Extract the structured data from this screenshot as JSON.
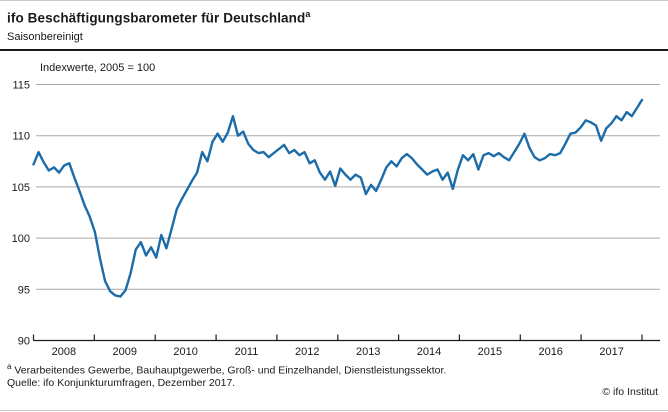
{
  "header": {
    "title": "ifo Beschäftigungsbarometer für Deutschland",
    "title_superscript": "a",
    "subtitle": "Saisonbereinigt"
  },
  "chart_data": {
    "type": "line",
    "title": "ifo Beschäftigungsbarometer für Deutschland",
    "unit_label": "Indexwerte, 2005 = 100",
    "grid": "horizontal",
    "legend": "none",
    "ylim": [
      90,
      115
    ],
    "y_ticks": [
      115,
      110,
      105,
      100,
      95,
      90
    ],
    "x_tick_years": [
      "2008",
      "2009",
      "2010",
      "2011",
      "2012",
      "2013",
      "2014",
      "2015",
      "2016",
      "2017"
    ],
    "line_color": "#1b6ca9",
    "series": [
      {
        "name": "ifo Beschäftigungsbarometer (saisonbereinigt)",
        "x_start": "2008-01",
        "x_end": "2017-12",
        "frequency": "monthly",
        "values": [
          107.2,
          108.4,
          107.4,
          106.6,
          106.9,
          106.4,
          107.1,
          107.3,
          105.9,
          104.6,
          103.2,
          102.1,
          100.6,
          98.0,
          95.8,
          94.8,
          94.4,
          94.3,
          94.9,
          96.6,
          98.9,
          99.6,
          98.3,
          99.1,
          98.1,
          100.3,
          99.0,
          100.9,
          102.8,
          103.8,
          104.7,
          105.6,
          106.4,
          108.4,
          107.5,
          109.4,
          110.2,
          109.4,
          110.3,
          111.9,
          110.0,
          110.4,
          109.2,
          108.6,
          108.3,
          108.4,
          107.9,
          108.3,
          108.7,
          109.1,
          108.3,
          108.6,
          108.1,
          108.4,
          107.3,
          107.6,
          106.4,
          105.7,
          106.5,
          105.1,
          106.8,
          106.2,
          105.7,
          106.2,
          105.9,
          104.3,
          105.2,
          104.6,
          105.7,
          106.9,
          107.5,
          107.0,
          107.8,
          108.2,
          107.8,
          107.2,
          106.7,
          106.2,
          106.5,
          106.7,
          105.7,
          106.4,
          104.8,
          106.7,
          108.1,
          107.6,
          108.2,
          106.7,
          108.1,
          108.3,
          108.0,
          108.3,
          107.9,
          107.6,
          108.4,
          109.2,
          110.2,
          108.8,
          107.9,
          107.6,
          107.8,
          108.2,
          108.1,
          108.3,
          109.2,
          110.2,
          110.3,
          110.8,
          111.5,
          111.3,
          111.0,
          109.5,
          110.7,
          111.2,
          111.9,
          111.5,
          112.3,
          111.9,
          112.7,
          113.5
        ]
      }
    ]
  },
  "footer": {
    "footnote_marker": "a",
    "footnote_text": "Verarbeitendes Gewerbe, Bauhauptgewerbe, Groß- und Einzelhandel, Dienstleistungssektor.",
    "source": "Quelle: ifo Konjunkturumfragen, Dezember 2017.",
    "copyright": "© ifo Institut"
  }
}
